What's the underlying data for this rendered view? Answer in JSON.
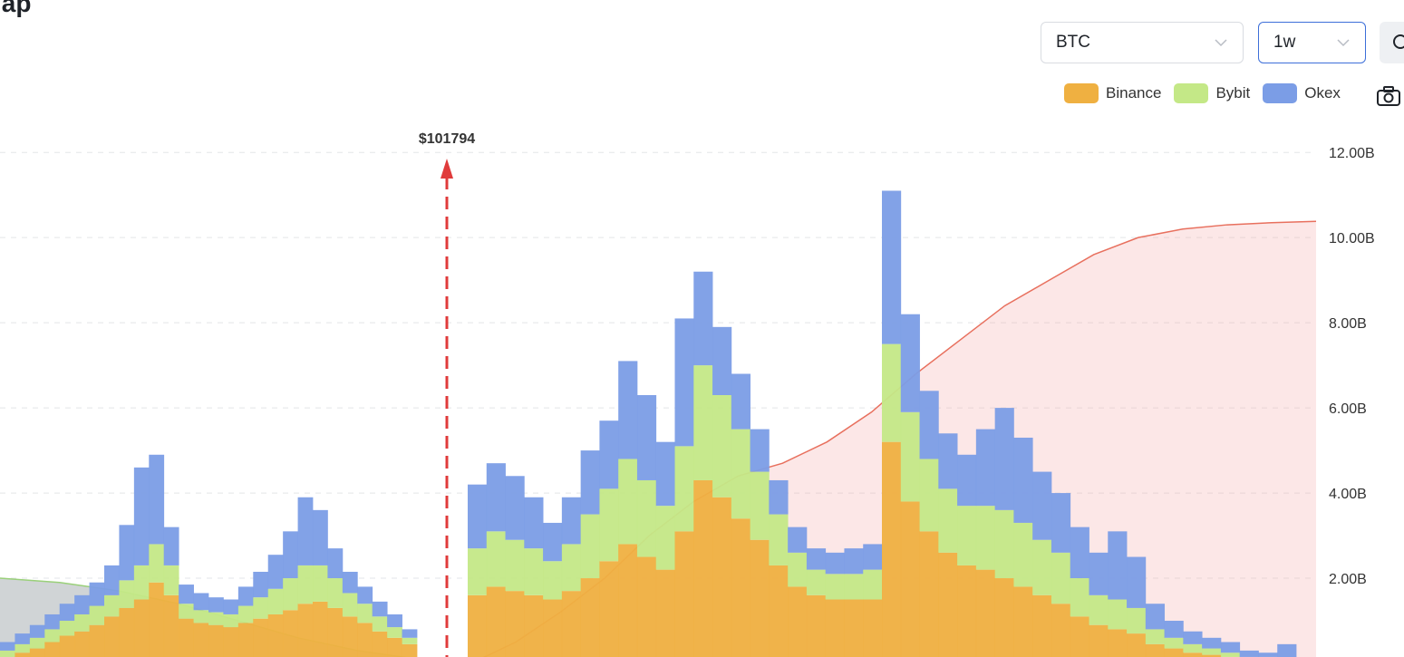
{
  "page": {
    "title": "lap"
  },
  "controls": {
    "coin": "BTC",
    "interval": "1w",
    "reset_icon": "search-icon",
    "camera_icon": "camera-icon"
  },
  "legend": [
    {
      "name": "Binance",
      "color": "#efb041"
    },
    {
      "name": "Bybit",
      "color": "#c4e887"
    },
    {
      "name": "Okex",
      "color": "#7b9de6"
    }
  ],
  "chart_data": {
    "type": "bar",
    "stacked": true,
    "current_price_label": "$101794",
    "current_price_marker_color": "#e03b3b",
    "y_tick_labels": [
      "2.00B",
      "4.00B",
      "6.00B",
      "8.00B",
      "10.00B",
      "12.00B"
    ],
    "ylim": [
      0,
      12.6
    ],
    "grid": true,
    "legend_position": "top-right",
    "series": [
      {
        "name": "Binance",
        "color": "#efb041"
      },
      {
        "name": "Bybit",
        "color": "#c4e887"
      },
      {
        "name": "Okex",
        "color": "#7b9de6"
      }
    ],
    "bars_before_price": [
      [
        0.15,
        0.15,
        0.2
      ],
      [
        0.25,
        0.2,
        0.25
      ],
      [
        0.35,
        0.25,
        0.3
      ],
      [
        0.5,
        0.3,
        0.35
      ],
      [
        0.65,
        0.35,
        0.4
      ],
      [
        0.75,
        0.4,
        0.45
      ],
      [
        0.9,
        0.45,
        0.55
      ],
      [
        1.1,
        0.5,
        0.7
      ],
      [
        1.3,
        0.65,
        1.3
      ],
      [
        1.5,
        0.8,
        2.3
      ],
      [
        1.9,
        0.9,
        2.1
      ],
      [
        1.6,
        0.7,
        0.9
      ],
      [
        1.05,
        0.35,
        0.45
      ],
      [
        0.95,
        0.3,
        0.4
      ],
      [
        0.9,
        0.3,
        0.35
      ],
      [
        0.85,
        0.3,
        0.35
      ],
      [
        0.95,
        0.4,
        0.45
      ],
      [
        1.05,
        0.5,
        0.6
      ],
      [
        1.15,
        0.6,
        0.8
      ],
      [
        1.25,
        0.75,
        1.1
      ],
      [
        1.4,
        0.9,
        1.6
      ],
      [
        1.45,
        0.85,
        1.3
      ],
      [
        1.3,
        0.7,
        0.7
      ],
      [
        1.1,
        0.55,
        0.5
      ],
      [
        0.95,
        0.45,
        0.4
      ],
      [
        0.75,
        0.35,
        0.35
      ],
      [
        0.6,
        0.25,
        0.3
      ],
      [
        0.45,
        0.15,
        0.2
      ]
    ],
    "bars_after_price": [
      [
        1.6,
        1.1,
        1.5
      ],
      [
        1.8,
        1.3,
        1.6
      ],
      [
        1.7,
        1.2,
        1.5
      ],
      [
        1.6,
        1.1,
        1.2
      ],
      [
        1.5,
        0.9,
        0.9
      ],
      [
        1.7,
        1.1,
        1.1
      ],
      [
        2.0,
        1.5,
        1.5
      ],
      [
        2.4,
        1.7,
        1.6
      ],
      [
        2.8,
        2.0,
        2.3
      ],
      [
        2.5,
        1.8,
        2.0
      ],
      [
        2.2,
        1.5,
        1.5
      ],
      [
        3.1,
        2.0,
        3.0
      ],
      [
        4.3,
        2.7,
        2.2
      ],
      [
        3.9,
        2.4,
        1.6
      ],
      [
        3.4,
        2.1,
        1.3
      ],
      [
        2.9,
        1.6,
        1.0
      ],
      [
        2.3,
        1.2,
        0.8
      ],
      [
        1.8,
        0.8,
        0.6
      ],
      [
        1.6,
        0.6,
        0.5
      ],
      [
        1.5,
        0.6,
        0.5
      ],
      [
        1.5,
        0.6,
        0.6
      ],
      [
        1.5,
        0.7,
        0.6
      ],
      [
        5.2,
        2.3,
        3.6
      ],
      [
        3.8,
        2.1,
        2.3
      ],
      [
        3.1,
        1.7,
        1.6
      ],
      [
        2.6,
        1.5,
        1.3
      ],
      [
        2.3,
        1.4,
        1.2
      ],
      [
        2.2,
        1.5,
        1.8
      ],
      [
        2.0,
        1.6,
        2.4
      ],
      [
        1.8,
        1.5,
        2.0
      ],
      [
        1.6,
        1.3,
        1.6
      ],
      [
        1.4,
        1.2,
        1.4
      ],
      [
        1.1,
        0.9,
        1.2
      ],
      [
        0.9,
        0.7,
        1.0
      ],
      [
        0.8,
        0.7,
        1.6
      ],
      [
        0.7,
        0.6,
        1.2
      ],
      [
        0.45,
        0.35,
        0.6
      ],
      [
        0.35,
        0.25,
        0.4
      ],
      [
        0.25,
        0.2,
        0.3
      ],
      [
        0.2,
        0.15,
        0.25
      ],
      [
        0.15,
        0.1,
        0.25
      ],
      [
        0.1,
        0.05,
        0.15
      ],
      [
        0.1,
        0.05,
        0.1
      ],
      [
        0.05,
        0.05,
        0.35
      ]
    ],
    "cumulative_short": [
      2.0,
      1.9,
      1.7,
      1.4,
      1.0,
      0.6,
      0.3,
      0.1
    ],
    "cumulative_long": [
      0.0,
      0.5,
      1.2,
      2.0,
      3.0,
      3.8,
      4.4,
      4.7,
      5.2,
      5.9,
      6.8,
      7.6,
      8.4,
      9.0,
      9.6,
      10.0,
      10.2,
      10.3,
      10.35,
      10.38
    ]
  }
}
